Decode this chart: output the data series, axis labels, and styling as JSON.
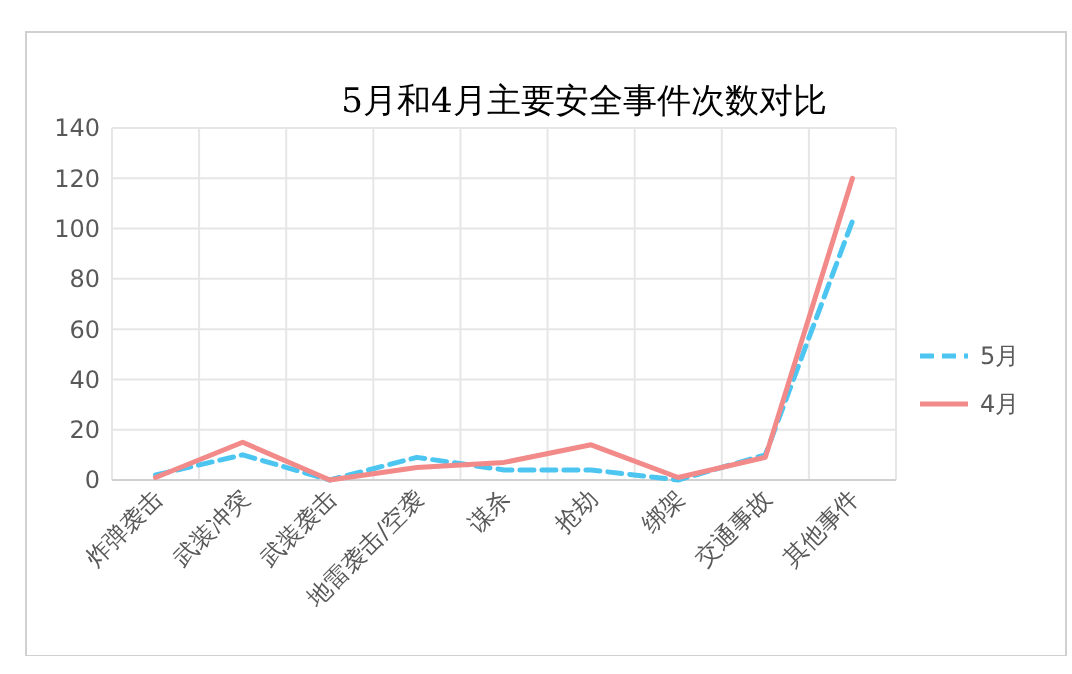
{
  "chart_data": {
    "type": "line",
    "title": "5月和4月主要安全事件次数对比",
    "categories": [
      "炸弹袭击",
      "武装冲突",
      "武装袭击",
      "地雷袭击/空袭",
      "谋杀",
      "抢劫",
      "绑架",
      "交通事故",
      "其他事件"
    ],
    "series": [
      {
        "name": "5月",
        "color": "#4cc5f0",
        "line_style": "dashed",
        "values": [
          2,
          10,
          0,
          9,
          4,
          4,
          0,
          10,
          103
        ]
      },
      {
        "name": "4月",
        "color": "#f28a8a",
        "line_style": "solid",
        "values": [
          1,
          15,
          0,
          5,
          7,
          14,
          1,
          9,
          120
        ]
      }
    ],
    "ylim": [
      0,
      140
    ],
    "yticks": [
      0,
      20,
      40,
      60,
      80,
      100,
      120,
      140
    ],
    "grid": true,
    "legend": "right",
    "marker": "none"
  }
}
